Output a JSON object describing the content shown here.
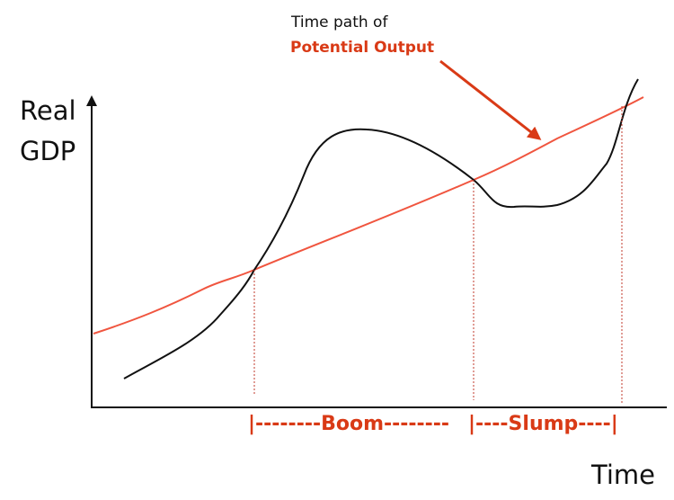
{
  "diagram": {
    "y_label_line1": "Real",
    "y_label_line2": "GDP",
    "x_label": "Time",
    "annotation_line1": "Time path of",
    "annotation_line2": "Potential Output",
    "boom_label": "|--------Boom--------",
    "slump_label": "|----Slump----|",
    "colors": {
      "axis": "#111111",
      "actual_gdp": "#111111",
      "potential_output": "#f0553f",
      "annotation": "#d93a16",
      "guides": "#c0392b"
    }
  }
}
